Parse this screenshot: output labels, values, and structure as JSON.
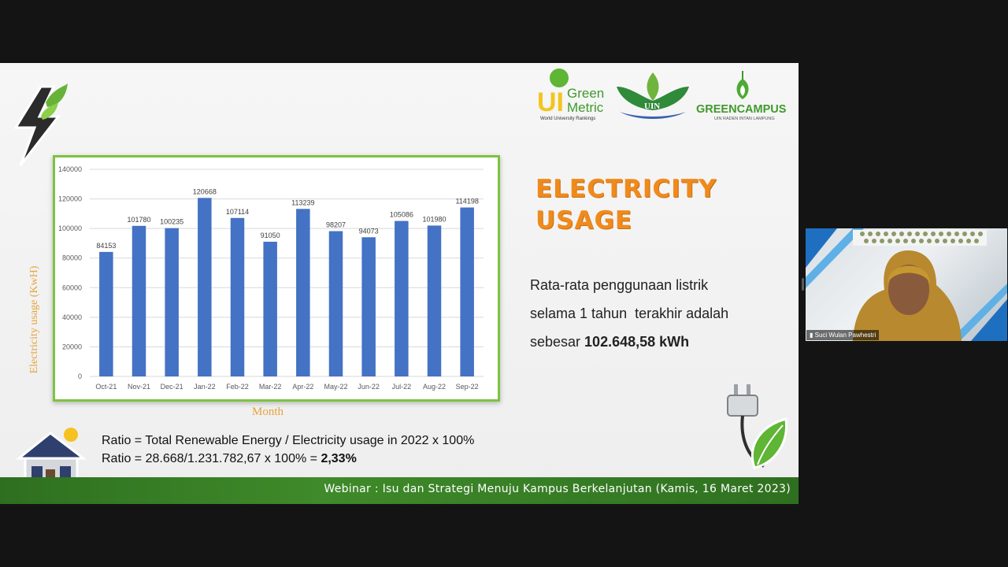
{
  "slide": {
    "title_line1": "ELECTRICITY",
    "title_line2": "USAGE",
    "desc_line1": "Rata-rata penggunaan listrik",
    "desc_line2": "selama 1 tahun  terakhir adalah",
    "desc_line3_prefix": "sebesar ",
    "desc_line3_bold": "102.648,58 kWh",
    "ratio_line1": "Ratio = Total Renewable Energy / Electricity usage in 2022 x 100%",
    "ratio_line2_prefix": "Ratio = 28.668/1.231.782,67 x 100% = ",
    "ratio_line2_bold": "2,33%",
    "footer": "Webinar : Isu dan Strategi Menuju Kampus Berkelanjutan (Kamis, 16 Maret 2023)",
    "logo_greenmetric_top": "UI",
    "logo_greenmetric_word1": "Green",
    "logo_greenmetric_word2": "Metric",
    "logo_greenmetric_sub": "World University Rankings",
    "logo_uin_text": "UIN",
    "logo_greencampus": "GREENCAMPUS",
    "logo_greencampus_sub": "UIN RADEN INTAN LAMPUNG"
  },
  "video": {
    "participant_name": "Suci Wulan Pawhestri"
  },
  "colors": {
    "bar": "#4472c4",
    "chart_border": "#7cc342",
    "title": "#f08a1c",
    "axis_label": "#e7a33a",
    "footer": "#3a8127"
  },
  "chart_data": {
    "type": "bar",
    "categories": [
      "Oct-21",
      "Nov-21",
      "Dec-21",
      "Jan-22",
      "Feb-22",
      "Mar-22",
      "Apr-22",
      "May-22",
      "Jun-22",
      "Jul-22",
      "Aug-22",
      "Sep-22"
    ],
    "values": [
      84153,
      101780,
      100235,
      120668,
      107114,
      91050,
      113239,
      98207,
      94073,
      105086,
      101980,
      114198
    ],
    "ylabel": "Electricity usage (KwH)",
    "xlabel": "Month",
    "ylim": [
      0,
      140000
    ],
    "yticks": [
      0,
      20000,
      40000,
      60000,
      80000,
      100000,
      120000,
      140000
    ],
    "grid": true
  }
}
